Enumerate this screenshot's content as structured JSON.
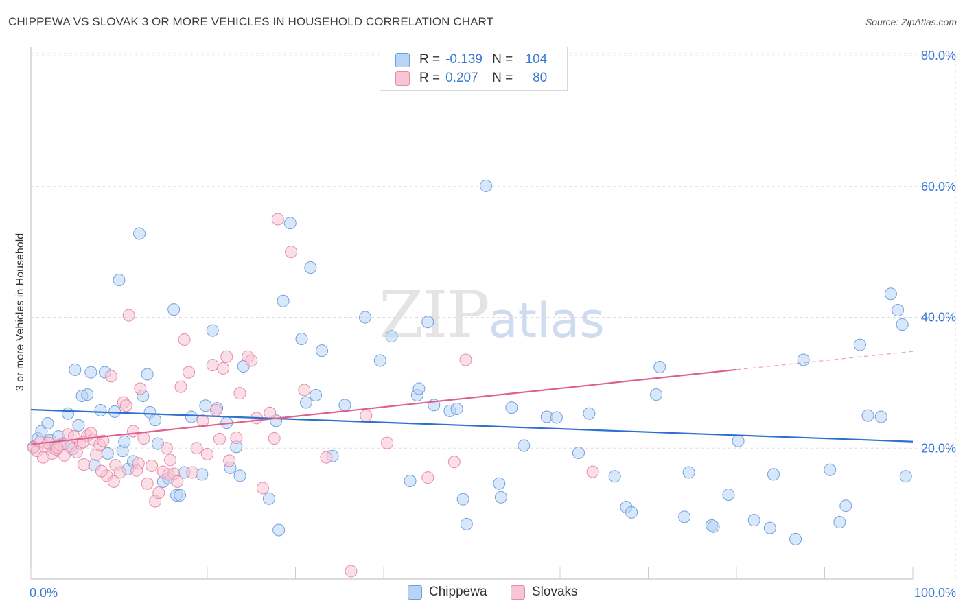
{
  "title": "CHIPPEWA VS SLOVAK 3 OR MORE VEHICLES IN HOUSEHOLD CORRELATION CHART",
  "source": "Source: ZipAtlas.com",
  "watermark": {
    "zip": "ZIP",
    "atlas": "atlas"
  },
  "legend": {
    "r_label": "R =",
    "n_label": "N =",
    "rows": [
      {
        "name": "Chippewa",
        "r": "-0.139",
        "n": "104",
        "color": "#b9d3f5",
        "stroke": "#6fa0df"
      },
      {
        "name": "Slovaks",
        "r": "0.207",
        "n": "80",
        "color": "#f7c5d4",
        "stroke": "#e88aa8"
      }
    ]
  },
  "chart_data": {
    "type": "scatter",
    "title": "CHIPPEWA VS SLOVAK 3 OR MORE VEHICLES IN HOUSEHOLD CORRELATION CHART",
    "xlabel": "",
    "ylabel": "3 or more Vehicles in Household",
    "xlim": [
      0,
      100
    ],
    "ylim": [
      0,
      82
    ],
    "x_tick_labels": [
      "0.0%",
      "100.0%"
    ],
    "y_ticks": [
      20,
      40,
      60,
      80
    ],
    "y_tick_labels": [
      "20.0%",
      "40.0%",
      "60.0%",
      "80.0%"
    ],
    "grid": true,
    "series": [
      {
        "name": "Chippewa",
        "color": "#6fa0df",
        "fill": "#b9d3f5",
        "trend": {
          "x0": 0,
          "y0": 25.9,
          "x1": 100,
          "y1": 21.0,
          "color": "#2f6fd0"
        },
        "points": [
          [
            0.3,
            20.2
          ],
          [
            0.8,
            21.5
          ],
          [
            1.2,
            22.6
          ],
          [
            1.9,
            23.8
          ],
          [
            2.2,
            21.2
          ],
          [
            2.6,
            20.0
          ],
          [
            3.1,
            21.8
          ],
          [
            3.7,
            20.6
          ],
          [
            4.2,
            25.3
          ],
          [
            4.7,
            19.9
          ],
          [
            5.0,
            32.0
          ],
          [
            5.4,
            23.5
          ],
          [
            5.8,
            28.0
          ],
          [
            6.4,
            28.2
          ],
          [
            6.8,
            31.6
          ],
          [
            7.2,
            17.4
          ],
          [
            7.9,
            25.8
          ],
          [
            8.4,
            31.6
          ],
          [
            8.7,
            19.2
          ],
          [
            9.5,
            25.6
          ],
          [
            10.0,
            45.7
          ],
          [
            10.4,
            19.6
          ],
          [
            10.6,
            21.0
          ],
          [
            11.0,
            16.8
          ],
          [
            11.6,
            18.0
          ],
          [
            12.3,
            52.8
          ],
          [
            12.7,
            28.0
          ],
          [
            13.2,
            31.3
          ],
          [
            13.5,
            25.5
          ],
          [
            14.1,
            24.3
          ],
          [
            14.4,
            20.7
          ],
          [
            15.0,
            14.9
          ],
          [
            15.6,
            15.4
          ],
          [
            16.2,
            41.2
          ],
          [
            16.5,
            12.8
          ],
          [
            16.9,
            12.8
          ],
          [
            17.4,
            16.3
          ],
          [
            18.2,
            24.8
          ],
          [
            19.4,
            16.0
          ],
          [
            19.8,
            26.5
          ],
          [
            20.6,
            38.0
          ],
          [
            21.1,
            26.1
          ],
          [
            22.2,
            23.9
          ],
          [
            22.6,
            17.0
          ],
          [
            23.3,
            20.2
          ],
          [
            23.7,
            15.8
          ],
          [
            24.1,
            32.5
          ],
          [
            27.0,
            12.3
          ],
          [
            27.8,
            24.2
          ],
          [
            28.1,
            7.5
          ],
          [
            28.6,
            42.5
          ],
          [
            29.4,
            54.4
          ],
          [
            30.7,
            36.7
          ],
          [
            31.2,
            27.0
          ],
          [
            31.7,
            47.6
          ],
          [
            32.3,
            28.1
          ],
          [
            33.0,
            34.9
          ],
          [
            34.2,
            18.8
          ],
          [
            35.6,
            26.6
          ],
          [
            37.9,
            40.0
          ],
          [
            39.6,
            33.4
          ],
          [
            40.9,
            37.1
          ],
          [
            43.0,
            15.0
          ],
          [
            43.8,
            28.1
          ],
          [
            44.0,
            29.1
          ],
          [
            45.0,
            39.3
          ],
          [
            45.7,
            26.6
          ],
          [
            47.5,
            25.7
          ],
          [
            48.3,
            26.0
          ],
          [
            49.0,
            12.2
          ],
          [
            49.4,
            8.4
          ],
          [
            51.6,
            60.1
          ],
          [
            53.1,
            14.6
          ],
          [
            53.3,
            12.5
          ],
          [
            54.5,
            26.2
          ],
          [
            55.9,
            20.4
          ],
          [
            58.5,
            24.8
          ],
          [
            59.6,
            24.7
          ],
          [
            62.1,
            19.3
          ],
          [
            63.3,
            25.3
          ],
          [
            66.2,
            15.7
          ],
          [
            67.5,
            11.0
          ],
          [
            68.1,
            10.2
          ],
          [
            70.9,
            28.2
          ],
          [
            71.3,
            32.4
          ],
          [
            74.1,
            9.5
          ],
          [
            74.6,
            16.3
          ],
          [
            77.2,
            8.2
          ],
          [
            77.4,
            8.0
          ],
          [
            79.1,
            12.9
          ],
          [
            80.2,
            21.1
          ],
          [
            82.0,
            9.0
          ],
          [
            83.8,
            7.8
          ],
          [
            84.2,
            16.0
          ],
          [
            86.7,
            6.1
          ],
          [
            87.6,
            33.5
          ],
          [
            90.6,
            16.7
          ],
          [
            91.7,
            8.7
          ],
          [
            92.4,
            11.2
          ],
          [
            94.0,
            35.8
          ],
          [
            94.9,
            25.0
          ],
          [
            96.4,
            24.8
          ],
          [
            97.5,
            43.6
          ],
          [
            98.3,
            41.1
          ],
          [
            98.8,
            38.9
          ],
          [
            99.2,
            15.7
          ]
        ]
      },
      {
        "name": "Slovaks",
        "color": "#e88aa8",
        "fill": "#f7c5d4",
        "trend": {
          "x0": 0,
          "y0": 20.6,
          "x1": 80,
          "y1": 32.0,
          "color": "#e0608d"
        },
        "trend_extension": {
          "x0": 80,
          "y0": 32.0,
          "x1": 100,
          "y1": 34.8
        },
        "points": [
          [
            0.3,
            20.1
          ],
          [
            0.7,
            19.6
          ],
          [
            1.1,
            21.0
          ],
          [
            1.6,
            20.2
          ],
          [
            2.0,
            20.8
          ],
          [
            2.4,
            19.2
          ],
          [
            2.9,
            19.8
          ],
          [
            3.3,
            20.5
          ],
          [
            3.8,
            18.9
          ],
          [
            4.2,
            22.1
          ],
          [
            4.5,
            20.3
          ],
          [
            4.9,
            21.8
          ],
          [
            5.2,
            19.4
          ],
          [
            5.6,
            20.7
          ],
          [
            6.0,
            17.5
          ],
          [
            6.4,
            21.9
          ],
          [
            6.8,
            22.3
          ],
          [
            7.1,
            21.3
          ],
          [
            7.4,
            19.0
          ],
          [
            7.8,
            20.5
          ],
          [
            8.2,
            21.1
          ],
          [
            8.6,
            15.8
          ],
          [
            9.1,
            31.0
          ],
          [
            9.6,
            17.4
          ],
          [
            10.1,
            16.3
          ],
          [
            10.5,
            27.0
          ],
          [
            10.8,
            26.5
          ],
          [
            11.1,
            40.3
          ],
          [
            11.6,
            22.6
          ],
          [
            12.0,
            16.6
          ],
          [
            12.4,
            29.1
          ],
          [
            12.8,
            21.5
          ],
          [
            13.2,
            14.6
          ],
          [
            13.7,
            17.3
          ],
          [
            14.1,
            11.9
          ],
          [
            14.5,
            13.2
          ],
          [
            15.0,
            16.4
          ],
          [
            15.4,
            20.0
          ],
          [
            15.8,
            18.2
          ],
          [
            16.2,
            16.1
          ],
          [
            16.6,
            14.9
          ],
          [
            17.0,
            29.4
          ],
          [
            17.4,
            36.6
          ],
          [
            17.9,
            31.6
          ],
          [
            18.3,
            16.3
          ],
          [
            19.5,
            24.2
          ],
          [
            20.0,
            19.1
          ],
          [
            20.6,
            32.7
          ],
          [
            21.0,
            25.8
          ],
          [
            21.4,
            21.4
          ],
          [
            21.8,
            32.2
          ],
          [
            22.2,
            34.0
          ],
          [
            23.3,
            21.6
          ],
          [
            23.7,
            28.4
          ],
          [
            24.6,
            34.0
          ],
          [
            25.0,
            33.4
          ],
          [
            25.6,
            24.6
          ],
          [
            27.1,
            25.4
          ],
          [
            27.6,
            21.5
          ],
          [
            28.0,
            55.0
          ],
          [
            31.0,
            28.9
          ],
          [
            36.3,
            1.2
          ],
          [
            45.0,
            15.5
          ],
          [
            49.3,
            33.5
          ],
          [
            33.5,
            18.6
          ],
          [
            38.0,
            25.0
          ],
          [
            40.4,
            20.8
          ],
          [
            48.0,
            17.9
          ],
          [
            63.7,
            16.4
          ],
          [
            1.4,
            18.6
          ],
          [
            3.0,
            20.1
          ],
          [
            5.9,
            20.9
          ],
          [
            8.0,
            16.5
          ],
          [
            9.4,
            14.9
          ],
          [
            12.2,
            17.7
          ],
          [
            15.6,
            16.0
          ],
          [
            18.8,
            20.0
          ],
          [
            22.5,
            18.1
          ],
          [
            26.3,
            13.9
          ],
          [
            29.5,
            50.0
          ]
        ]
      }
    ]
  }
}
